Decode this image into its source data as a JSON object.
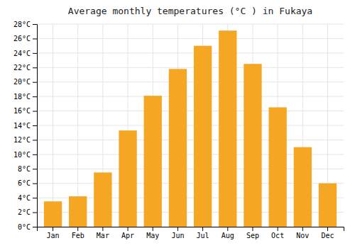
{
  "chart_data": {
    "type": "bar",
    "title": "Average monthly temperatures (°C ) in Fukaya",
    "categories": [
      "Jan",
      "Feb",
      "Mar",
      "Apr",
      "May",
      "Jun",
      "Jul",
      "Aug",
      "Sep",
      "Oct",
      "Nov",
      "Dec"
    ],
    "values": [
      3.5,
      4.2,
      7.5,
      13.3,
      18.1,
      21.8,
      25.0,
      27.1,
      22.5,
      16.5,
      11.0,
      6.0
    ],
    "color": "#F5A623",
    "ylim": [
      0,
      28
    ],
    "yticks": [
      {
        "value": 0,
        "label": "0°C"
      },
      {
        "value": 2,
        "label": "2°C"
      },
      {
        "value": 4,
        "label": "4°C"
      },
      {
        "value": 6,
        "label": "6°C"
      },
      {
        "value": 8,
        "label": "8°C"
      },
      {
        "value": 10,
        "label": "10°C"
      },
      {
        "value": 12,
        "label": "12°C"
      },
      {
        "value": 14,
        "label": "14°C"
      },
      {
        "value": 16,
        "label": "16°C"
      },
      {
        "value": 18,
        "label": "18°C"
      },
      {
        "value": 20,
        "label": "20°C"
      },
      {
        "value": 22,
        "label": "22°C"
      },
      {
        "value": 24,
        "label": "24°C"
      },
      {
        "value": 26,
        "label": "26°C"
      },
      {
        "value": 28,
        "label": "28°C"
      }
    ],
    "grid": true
  }
}
